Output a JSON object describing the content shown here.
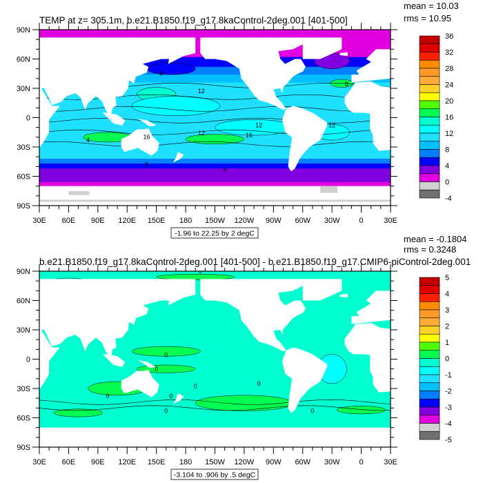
{
  "panels": [
    {
      "title": "TEMP at z= 305.1m, b.e21.B1850.f19_g17.8kaControl-2deg.001 [401-500]",
      "mean": "mean = 10.03",
      "rms": "rms = 10.95",
      "info": "-1.96 to 22.25 by 2 degC",
      "labelbar_labels": [
        "36",
        "32",
        "28",
        "24",
        "20",
        "16",
        "12",
        "8",
        "4",
        "0",
        "-4"
      ],
      "contour_labels": [
        "8",
        "12",
        "12",
        "16",
        "12",
        "8",
        "12",
        "4",
        "8",
        "4",
        "16"
      ]
    },
    {
      "title": "b.e21.B1850.f19_g17.8kaControl-2deg.001 [401-500] - b.e21.B1850.f19_g17.CMIP6-piControl-2deg.001",
      "mean": "mean = -0.1804",
      "rms": "rms = 0.3248",
      "info": "-3.104 to .906 by .5 degC",
      "labelbar_labels": [
        "5",
        "4",
        "3",
        "2",
        "1",
        "0",
        "-1",
        "-2",
        "-3",
        "-4",
        "-5"
      ],
      "contour_labels": [
        "0",
        "0",
        "0",
        "0",
        "0",
        "0",
        "0",
        "0",
        "0"
      ]
    }
  ],
  "lon_ticks": [
    "30E",
    "60E",
    "90E",
    "120E",
    "150E",
    "180",
    "150W",
    "120W",
    "90W",
    "60W",
    "30W",
    "0",
    "30E"
  ],
  "lat_ticks": [
    "90N",
    "60N",
    "30N",
    "0",
    "30S",
    "60S",
    "90S"
  ],
  "labelbar_colors": [
    "#c00000",
    "#e00000",
    "#ff2000",
    "#ff8c00",
    "#ff9a28",
    "#ffab38",
    "#ffd028",
    "#ffff00",
    "#50ff00",
    "#00ff50",
    "#00ffd0",
    "#00ffff",
    "#20e0ff",
    "#00c0ff",
    "#0080ff",
    "#0000ff",
    "#8000e0",
    "#e000e0",
    "#d0d0d0",
    "#707070"
  ],
  "chart_data": [
    {
      "type": "heatmap",
      "title": "TEMP at z= 305.1m, b.e21.B1850.f19_g17.8kaControl-2deg.001 [401-500]",
      "xlim": [
        "30E",
        "30E"
      ],
      "ylim": [
        "90S",
        "90N"
      ],
      "levels": [
        -4,
        0,
        4,
        8,
        12,
        16,
        20,
        24,
        28,
        32,
        36
      ],
      "min": -1.96,
      "max": 22.25,
      "interval": 2,
      "units": "degC",
      "mean": 10.03,
      "rms": 10.95
    },
    {
      "type": "heatmap",
      "title": "b.e21.B1850.f19_g17.8kaControl-2deg.001 [401-500] - b.e21.B1850.f19_g17.CMIP6-piControl-2deg.001",
      "xlim": [
        "30E",
        "30E"
      ],
      "ylim": [
        "90S",
        "90N"
      ],
      "levels": [
        -5,
        -4,
        -3,
        -2,
        -1,
        0,
        1,
        2,
        3,
        4,
        5
      ],
      "min": -3.104,
      "max": 0.906,
      "interval": 0.5,
      "units": "degC",
      "mean": -0.1804,
      "rms": 0.3248
    }
  ]
}
